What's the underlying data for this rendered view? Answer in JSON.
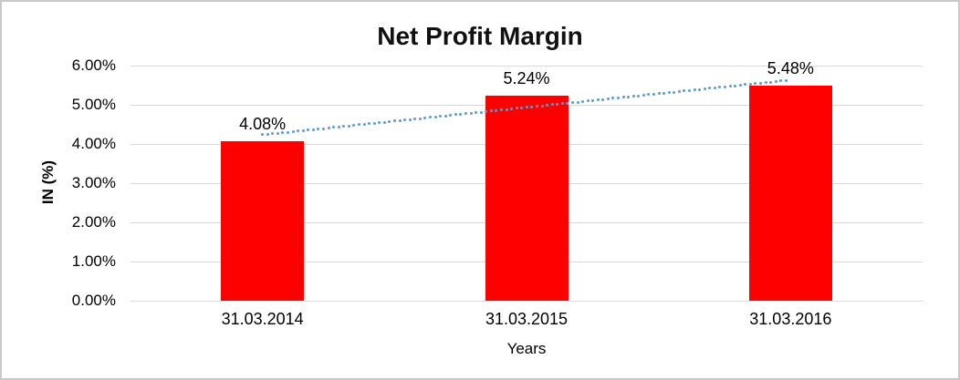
{
  "chart_data": {
    "type": "bar",
    "title": "Net Profit Margin",
    "xlabel": "Years",
    "ylabel": "IN (%)",
    "categories": [
      "31.03.2014",
      "31.03.2015",
      "31.03.2016"
    ],
    "values": [
      4.08,
      5.24,
      5.48
    ],
    "data_labels": [
      "4.08%",
      "5.24%",
      "5.48%"
    ],
    "y_ticks": [
      "0.00%",
      "1.00%",
      "2.00%",
      "3.00%",
      "4.00%",
      "5.00%",
      "6.00%"
    ],
    "y_tick_values": [
      0,
      1,
      2,
      3,
      4,
      5,
      6
    ],
    "ylim": [
      0,
      6
    ],
    "grid": true,
    "legend": "none",
    "bar_color": "#ff0000",
    "gridline_color": "#d9d9d9",
    "frame_border_color": "#c9c9c9",
    "text_color": "#000000",
    "trendline": {
      "type": "linear",
      "style": "dotted",
      "color": "#5b9bd5"
    }
  }
}
